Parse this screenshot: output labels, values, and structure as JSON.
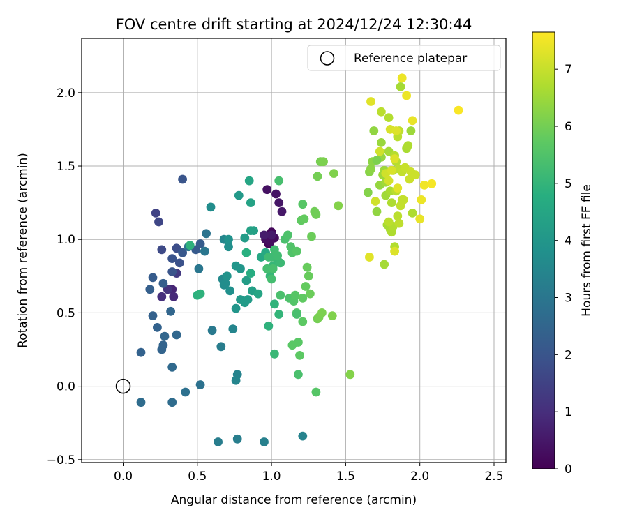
{
  "chart_data": {
    "type": "scatter",
    "title": "FOV centre drift starting at 2024/12/24 12:30:44",
    "xlabel": "Angular distance from reference (arcmin)",
    "ylabel": "Rotation from reference (arcmin)",
    "xlim": [
      -0.28,
      2.58
    ],
    "ylim": [
      -0.52,
      2.37
    ],
    "xticks": [
      0.0,
      0.5,
      1.0,
      1.5,
      2.0,
      2.5
    ],
    "xtick_labels": [
      "0.0",
      "0.5",
      "1.0",
      "1.5",
      "2.0",
      "2.5"
    ],
    "yticks": [
      -0.5,
      0.0,
      0.5,
      1.0,
      1.5,
      2.0
    ],
    "ytick_labels": [
      "−0.5",
      "0.0",
      "0.5",
      "1.0",
      "1.5",
      "2.0"
    ],
    "grid": true,
    "legend": {
      "placement": "top-right",
      "entries": [
        "Reference platepar"
      ]
    },
    "reference_point": {
      "x": 0.0,
      "y": 0.0,
      "label": "Reference platepar"
    },
    "colorbar": {
      "label": "Hours from first FF file",
      "range": [
        0,
        7.65
      ],
      "ticks": [
        0,
        1,
        2,
        3,
        4,
        5,
        6,
        7
      ],
      "tick_labels": [
        "0",
        "1",
        "2",
        "3",
        "4",
        "5",
        "6",
        "7"
      ],
      "colormap": "viridis"
    },
    "points": [
      [
        0.97,
        1.01,
        0.05
      ],
      [
        0.98,
        0.97,
        0.1
      ],
      [
        1.0,
        1.05,
        0.15
      ],
      [
        1.02,
        1.01,
        0.2
      ],
      [
        0.99,
        0.98,
        0.25
      ],
      [
        0.96,
        1.0,
        0.3
      ],
      [
        0.97,
        1.34,
        0.35
      ],
      [
        1.03,
        1.31,
        0.4
      ],
      [
        1.05,
        1.25,
        0.45
      ],
      [
        1.07,
        1.19,
        0.5
      ],
      [
        1.0,
        1.03,
        0.55
      ],
      [
        0.95,
        1.03,
        0.6
      ],
      [
        0.33,
        0.66,
        0.8
      ],
      [
        0.34,
        0.61,
        0.9
      ],
      [
        0.26,
        0.61,
        1.0
      ],
      [
        0.3,
        0.66,
        1.1
      ],
      [
        0.36,
        0.77,
        1.3
      ],
      [
        0.22,
        1.18,
        1.5
      ],
      [
        0.24,
        1.12,
        1.6
      ],
      [
        0.26,
        0.93,
        1.7
      ],
      [
        0.36,
        0.94,
        1.8
      ],
      [
        0.38,
        0.84,
        1.9
      ],
      [
        0.33,
        0.87,
        1.95
      ],
      [
        0.33,
        0.78,
        2.0
      ],
      [
        0.4,
        1.41,
        2.0
      ],
      [
        0.4,
        0.91,
        2.1
      ],
      [
        0.49,
        0.93,
        2.15
      ],
      [
        0.52,
        0.97,
        2.2
      ],
      [
        0.2,
        0.74,
        2.2
      ],
      [
        0.18,
        0.66,
        2.3
      ],
      [
        0.27,
        0.7,
        2.3
      ],
      [
        0.2,
        0.48,
        2.35
      ],
      [
        0.23,
        0.4,
        2.4
      ],
      [
        0.12,
        0.23,
        2.4
      ],
      [
        0.26,
        0.25,
        2.45
      ],
      [
        0.27,
        0.28,
        2.45
      ],
      [
        0.28,
        0.34,
        2.5
      ],
      [
        0.32,
        0.51,
        2.5
      ],
      [
        0.36,
        0.35,
        2.55
      ],
      [
        0.33,
        0.13,
        2.6
      ],
      [
        0.12,
        -0.11,
        2.7
      ],
      [
        0.33,
        -0.11,
        2.7
      ],
      [
        0.42,
        -0.04,
        2.8
      ],
      [
        0.52,
        0.01,
        2.85
      ],
      [
        0.56,
        1.04,
        2.9
      ],
      [
        0.44,
        0.95,
        2.9
      ],
      [
        0.51,
        0.8,
        3.0
      ],
      [
        0.55,
        0.92,
        3.0
      ],
      [
        0.6,
        0.38,
        3.1
      ],
      [
        0.66,
        0.27,
        3.2
      ],
      [
        0.64,
        -0.38,
        3.2
      ],
      [
        0.77,
        -0.36,
        3.25
      ],
      [
        0.95,
        -0.38,
        3.3
      ],
      [
        1.21,
        -0.34,
        3.4
      ],
      [
        0.77,
        0.08,
        3.4
      ],
      [
        0.76,
        0.04,
        3.45
      ],
      [
        0.74,
        0.39,
        3.45
      ],
      [
        0.68,
        1.0,
        3.5
      ],
      [
        0.67,
        0.73,
        3.6
      ],
      [
        0.68,
        0.69,
        3.65
      ],
      [
        0.59,
        1.22,
        3.7
      ],
      [
        0.69,
        0.7,
        3.7
      ],
      [
        0.71,
        0.95,
        3.75
      ],
      [
        0.72,
        0.65,
        3.8
      ],
      [
        0.71,
        1.0,
        3.85
      ],
      [
        0.7,
        0.75,
        3.9
      ],
      [
        0.76,
        0.53,
        3.95
      ],
      [
        0.79,
        0.8,
        4.0
      ],
      [
        0.76,
        0.82,
        4.0
      ],
      [
        0.78,
        1.3,
        4.1
      ],
      [
        0.79,
        0.59,
        4.1
      ],
      [
        0.82,
        0.57,
        4.15
      ],
      [
        0.84,
        0.59,
        4.15
      ],
      [
        0.83,
        0.72,
        4.2
      ],
      [
        0.82,
        1.01,
        4.2
      ],
      [
        0.87,
        0.65,
        4.3
      ],
      [
        0.88,
        1.06,
        4.3
      ],
      [
        0.86,
        1.06,
        4.35
      ],
      [
        0.86,
        1.25,
        4.4
      ],
      [
        0.91,
        0.63,
        4.45
      ],
      [
        0.85,
        1.4,
        4.5
      ],
      [
        0.93,
        0.88,
        4.55
      ],
      [
        0.96,
        0.91,
        4.6
      ],
      [
        0.86,
        0.77,
        4.7
      ],
      [
        0.83,
        0.91,
        4.8
      ],
      [
        0.5,
        0.62,
        4.85
      ],
      [
        0.52,
        0.63,
        4.9
      ],
      [
        0.45,
        0.96,
        4.9
      ],
      [
        0.98,
        0.41,
        4.9
      ],
      [
        1.02,
        0.56,
        4.95
      ],
      [
        1.05,
        0.49,
        5.0
      ],
      [
        0.99,
        0.75,
        5.05
      ],
      [
        1.01,
        0.82,
        5.05
      ],
      [
        1.02,
        0.22,
        5.1
      ],
      [
        1.04,
        0.86,
        5.1
      ],
      [
        1.06,
        0.84,
        5.15
      ],
      [
        0.98,
        0.88,
        5.2
      ],
      [
        1.0,
        0.88,
        5.2
      ],
      [
        1.02,
        0.93,
        5.25
      ],
      [
        1.04,
        0.89,
        5.25
      ],
      [
        1.0,
        0.73,
        5.3
      ],
      [
        0.97,
        0.8,
        5.3
      ],
      [
        1.01,
        0.8,
        5.35
      ],
      [
        1.06,
        0.62,
        5.4
      ],
      [
        1.09,
        1.0,
        5.4
      ],
      [
        1.11,
        1.03,
        5.45
      ],
      [
        1.12,
        0.6,
        5.45
      ],
      [
        1.13,
        0.95,
        5.5
      ],
      [
        1.14,
        0.91,
        5.5
      ],
      [
        1.15,
        0.58,
        5.55
      ],
      [
        1.17,
        0.5,
        5.55
      ],
      [
        1.16,
        0.62,
        5.6
      ],
      [
        1.17,
        0.92,
        5.6
      ],
      [
        1.14,
        0.28,
        5.65
      ],
      [
        1.18,
        0.3,
        5.65
      ],
      [
        1.19,
        0.21,
        5.7
      ],
      [
        1.21,
        0.44,
        5.7
      ],
      [
        1.21,
        0.6,
        5.75
      ],
      [
        1.2,
        1.13,
        5.75
      ],
      [
        1.22,
        1.14,
        5.8
      ],
      [
        1.23,
        0.68,
        5.8
      ],
      [
        1.24,
        0.81,
        5.85
      ],
      [
        1.25,
        0.75,
        5.85
      ],
      [
        1.26,
        0.63,
        5.9
      ],
      [
        1.27,
        1.02,
        5.9
      ],
      [
        1.29,
        1.19,
        5.95
      ],
      [
        1.3,
        1.17,
        5.95
      ],
      [
        1.31,
        0.46,
        6.0
      ],
      [
        1.31,
        1.43,
        6.0
      ],
      [
        1.32,
        0.47,
        6.05
      ],
      [
        1.33,
        1.53,
        6.05
      ],
      [
        1.34,
        0.5,
        6.1
      ],
      [
        1.35,
        1.53,
        6.1
      ],
      [
        1.41,
        0.48,
        6.15
      ],
      [
        1.42,
        1.45,
        6.15
      ],
      [
        1.45,
        1.23,
        6.2
      ],
      [
        1.53,
        0.08,
        6.2
      ],
      [
        1.3,
        -0.04,
        5.6
      ],
      [
        1.18,
        0.08,
        5.4
      ],
      [
        1.21,
        1.24,
        5.6
      ],
      [
        1.17,
        0.49,
        5.35
      ],
      [
        1.05,
        1.4,
        5.35
      ],
      [
        1.65,
        1.32,
        6.2
      ],
      [
        1.66,
        1.46,
        6.25
      ],
      [
        1.67,
        1.48,
        6.3
      ],
      [
        1.68,
        1.53,
        6.3
      ],
      [
        1.69,
        1.74,
        6.35
      ],
      [
        1.71,
        1.19,
        6.35
      ],
      [
        1.73,
        1.37,
        6.4
      ],
      [
        1.74,
        1.56,
        6.4
      ],
      [
        1.74,
        1.66,
        6.45
      ],
      [
        1.75,
        1.44,
        6.5
      ],
      [
        1.76,
        1.47,
        6.5
      ],
      [
        1.77,
        1.39,
        6.55
      ],
      [
        1.77,
        1.3,
        6.55
      ],
      [
        1.76,
        0.83,
        6.6
      ],
      [
        1.78,
        1.1,
        6.6
      ],
      [
        1.79,
        1.6,
        6.6
      ],
      [
        1.8,
        1.33,
        6.65
      ],
      [
        1.8,
        1.07,
        6.65
      ],
      [
        1.81,
        1.05,
        6.7
      ],
      [
        1.81,
        1.25,
        6.7
      ],
      [
        1.82,
        1.47,
        6.75
      ],
      [
        1.82,
        1.09,
        6.75
      ],
      [
        1.83,
        0.95,
        6.75
      ],
      [
        1.83,
        1.57,
        6.8
      ],
      [
        1.84,
        1.53,
        6.8
      ],
      [
        1.84,
        1.33,
        6.85
      ],
      [
        1.85,
        1.16,
        6.85
      ],
      [
        1.85,
        1.7,
        6.85
      ],
      [
        1.86,
        1.74,
        6.9
      ],
      [
        1.86,
        1.48,
        6.9
      ],
      [
        1.87,
        1.23,
        6.95
      ],
      [
        1.87,
        2.04,
        6.6
      ],
      [
        1.88,
        1.46,
        6.95
      ],
      [
        1.89,
        1.27,
        7.0
      ],
      [
        1.9,
        1.49,
        7.0
      ],
      [
        1.91,
        1.62,
        6.65
      ],
      [
        1.92,
        1.64,
        6.7
      ],
      [
        1.93,
        1.41,
        7.05
      ],
      [
        1.94,
        1.46,
        7.05
      ],
      [
        1.94,
        1.74,
        6.5
      ],
      [
        1.95,
        1.18,
        6.7
      ],
      [
        1.97,
        1.44,
        7.05
      ],
      [
        1.74,
        1.87,
        6.85
      ],
      [
        1.73,
        1.6,
        7.1
      ],
      [
        1.7,
        1.26,
        7.1
      ],
      [
        1.67,
        1.94,
        7.3
      ],
      [
        1.66,
        0.88,
        7.3
      ],
      [
        1.71,
        1.54,
        6.1
      ],
      [
        1.77,
        1.45,
        7.1
      ],
      [
        1.79,
        1.4,
        7.15
      ],
      [
        1.8,
        1.75,
        7.2
      ],
      [
        1.81,
        1.47,
        7.2
      ],
      [
        1.83,
        0.92,
        7.25
      ],
      [
        1.83,
        1.55,
        7.25
      ],
      [
        1.85,
        1.35,
        7.3
      ],
      [
        1.88,
        2.1,
        7.45
      ],
      [
        1.91,
        1.98,
        7.45
      ],
      [
        1.95,
        1.81,
        7.4
      ],
      [
        2.0,
        1.14,
        7.4
      ],
      [
        2.01,
        1.27,
        7.45
      ],
      [
        2.03,
        1.37,
        7.5
      ],
      [
        2.08,
        1.38,
        7.55
      ],
      [
        2.26,
        1.88,
        7.6
      ],
      [
        1.84,
        1.74,
        7.25
      ],
      [
        1.79,
        1.83,
        6.75
      ],
      [
        1.88,
        1.27,
        6.95
      ],
      [
        1.79,
        1.12,
        6.85
      ],
      [
        1.86,
        1.11,
        6.9
      ]
    ]
  }
}
